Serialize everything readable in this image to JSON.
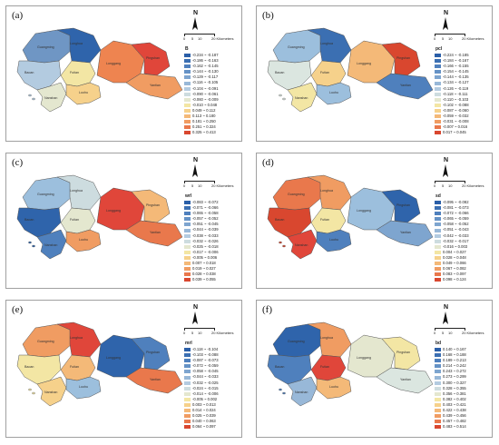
{
  "compass_letter": "N",
  "scale": {
    "ticks": [
      "0",
      "5",
      "10",
      "20 Kilometers"
    ]
  },
  "district_names": [
    "Guangming",
    "Longhua",
    "Baoan",
    "Nanshan",
    "Futian",
    "Luohu",
    "Longgang",
    "Pingshan",
    "Yantian"
  ],
  "colors": {
    "blue_dark": "#2b5fa8",
    "blue": "#4f86c2",
    "blue_light": "#9cbfdd",
    "pale": "#dbe6e0",
    "cream": "#f3e6a4",
    "orange_light": "#f4b978",
    "orange": "#ee8450",
    "red": "#e0463a",
    "red_dark": "#c8281e"
  },
  "panels": [
    {
      "label": "(a)",
      "legend_title": "B",
      "legend": [
        {
          "range": "-0.234 ~ -0.187",
          "color": "#2b5fa8"
        },
        {
          "range": "-0.186 ~ -0.163",
          "color": "#3b6fb2"
        },
        {
          "range": "-0.162 ~ -0.145",
          "color": "#4f80bd"
        },
        {
          "range": "-0.144 ~ -0.130",
          "color": "#6592c6"
        },
        {
          "range": "-0.129 ~ -0.117",
          "color": "#7ea5cf"
        },
        {
          "range": "-0.116 ~ -0.105",
          "color": "#98b8d8"
        },
        {
          "range": "-0.104 ~ -0.091",
          "color": "#b3cbe0"
        },
        {
          "range": "-0.090 ~ -0.061",
          "color": "#cddcdf"
        },
        {
          "range": "-0.060 ~ -0.009",
          "color": "#e4e7cf"
        },
        {
          "range": "-0.010 ~ 0.048",
          "color": "#f3e6a4"
        },
        {
          "range": "0.049 ~ 0.112",
          "color": "#f6d18b"
        },
        {
          "range": "0.113 ~ 0.180",
          "color": "#f4b978"
        },
        {
          "range": "0.181 ~ 0.250",
          "color": "#f09c62"
        },
        {
          "range": "0.251 ~ 0.324",
          "color": "#e9784c"
        },
        {
          "range": "0.325 ~ 0.413",
          "color": "#d9472f"
        }
      ],
      "regions": [
        "#6f96c4",
        "#2f64ab",
        "#b3cbe0",
        "#e4e7cf",
        "#f3e6a4",
        "#f6d18b",
        "#ee8450",
        "#e0463a",
        "#f09c62"
      ]
    },
    {
      "label": "(b)",
      "legend_title": "pcl",
      "legend": [
        {
          "range": "-0.224 ~ -0.185",
          "color": "#2b5fa8"
        },
        {
          "range": "-0.184 ~ -0.167",
          "color": "#3b6fb2"
        },
        {
          "range": "-0.166 ~ -0.155",
          "color": "#4f80bd"
        },
        {
          "range": "-0.154 ~ -0.145",
          "color": "#6592c6"
        },
        {
          "range": "-0.144 ~ -0.135",
          "color": "#7ea5cf"
        },
        {
          "range": "-0.134 ~ -0.127",
          "color": "#98b8d8"
        },
        {
          "range": "-0.126 ~ -0.119",
          "color": "#b3cbe0"
        },
        {
          "range": "-0.118 ~ -0.111",
          "color": "#cddcdf"
        },
        {
          "range": "-0.110 ~ -0.103",
          "color": "#e4e7cf"
        },
        {
          "range": "-0.102 ~ -0.088",
          "color": "#f3e6a4"
        },
        {
          "range": "-0.087 ~ -0.060",
          "color": "#f6d18b"
        },
        {
          "range": "-0.059 ~ -0.032",
          "color": "#f4b978"
        },
        {
          "range": "-0.031 ~ -0.008",
          "color": "#f09c62"
        },
        {
          "range": "-0.007 ~ 0.016",
          "color": "#e9784c"
        },
        {
          "range": "0.017 ~ 0.045",
          "color": "#d9472f"
        }
      ],
      "regions": [
        "#9cbfdd",
        "#3b6fb2",
        "#dbe6e0",
        "#f3e6a4",
        "#f6d18b",
        "#9cbfdd",
        "#f4b978",
        "#d9472f",
        "#4f80bd"
      ]
    },
    {
      "label": "(c)",
      "legend_title": "wrl",
      "legend": [
        {
          "range": "-0.083 ~ -0.072",
          "color": "#2b5fa8"
        },
        {
          "range": "-0.071 ~ -0.066",
          "color": "#3b6fb2"
        },
        {
          "range": "-0.065 ~ -0.058",
          "color": "#4f80bd"
        },
        {
          "range": "-0.057 ~ -0.052",
          "color": "#6592c6"
        },
        {
          "range": "-0.051 ~ -0.045",
          "color": "#7ea5cf"
        },
        {
          "range": "-0.044 ~ -0.039",
          "color": "#98b8d8"
        },
        {
          "range": "-0.038 ~ -0.033",
          "color": "#b3cbe0"
        },
        {
          "range": "-0.032 ~ -0.026",
          "color": "#cddcdf"
        },
        {
          "range": "-0.025 ~ -0.018",
          "color": "#e4e7cf"
        },
        {
          "range": "-0.017 ~ -0.006",
          "color": "#f3e6a4"
        },
        {
          "range": "-0.005 ~ 0.006",
          "color": "#f6d18b"
        },
        {
          "range": "0.007 ~ 0.018",
          "color": "#f4b978"
        },
        {
          "range": "0.019 ~ 0.027",
          "color": "#f09c62"
        },
        {
          "range": "0.028 ~ 0.038",
          "color": "#e9784c"
        },
        {
          "range": "0.039 ~ 0.055",
          "color": "#d9472f"
        }
      ],
      "regions": [
        "#9cbfdd",
        "#cddcdf",
        "#2f64ab",
        "#4f80bd",
        "#e4e7cf",
        "#f09c62",
        "#e0463a",
        "#f4b978",
        "#e9784c"
      ]
    },
    {
      "label": "(d)",
      "legend_title": "sd",
      "legend": [
        {
          "range": "-0.095 ~ -0.082",
          "color": "#2b5fa8"
        },
        {
          "range": "-0.081 ~ -0.073",
          "color": "#3b6fb2"
        },
        {
          "range": "-0.072 ~ -0.066",
          "color": "#4f80bd"
        },
        {
          "range": "-0.065 ~ -0.059",
          "color": "#6592c6"
        },
        {
          "range": "-0.058 ~ -0.052",
          "color": "#7ea5cf"
        },
        {
          "range": "-0.051 ~ -0.043",
          "color": "#98b8d8"
        },
        {
          "range": "-0.042 ~ -0.033",
          "color": "#b3cbe0"
        },
        {
          "range": "-0.032 ~ -0.017",
          "color": "#cddcdf"
        },
        {
          "range": "-0.016 ~ 0.003",
          "color": "#e4e7cf"
        },
        {
          "range": "0.004 ~ 0.027",
          "color": "#f3e6a4"
        },
        {
          "range": "0.028 ~ 0.048",
          "color": "#f6d18b"
        },
        {
          "range": "0.049 ~ 0.066",
          "color": "#f4b978"
        },
        {
          "range": "0.067 ~ 0.082",
          "color": "#f09c62"
        },
        {
          "range": "0.083 ~ 0.097",
          "color": "#e9784c"
        },
        {
          "range": "0.098 ~ 0.124",
          "color": "#d9472f"
        }
      ],
      "regions": [
        "#e9784c",
        "#f09c62",
        "#d9472f",
        "#e0463a",
        "#f3e6a4",
        "#4f80bd",
        "#9cbfdd",
        "#2f64ab",
        "#7ea5cf"
      ]
    },
    {
      "label": "(e)",
      "legend_title": "mrl",
      "legend": [
        {
          "range": "-0.118 ~ -0.104",
          "color": "#2b5fa8"
        },
        {
          "range": "-0.103 ~ -0.088",
          "color": "#3b6fb2"
        },
        {
          "range": "-0.087 ~ -0.073",
          "color": "#4f80bd"
        },
        {
          "range": "-0.072 ~ -0.059",
          "color": "#6592c6"
        },
        {
          "range": "-0.058 ~ -0.045",
          "color": "#7ea5cf"
        },
        {
          "range": "-0.044 ~ -0.033",
          "color": "#98b8d8"
        },
        {
          "range": "-0.032 ~ -0.025",
          "color": "#b3cbe0"
        },
        {
          "range": "-0.024 ~ -0.015",
          "color": "#cddcdf"
        },
        {
          "range": "-0.014 ~ -0.006",
          "color": "#e4e7cf"
        },
        {
          "range": "-0.005 ~ 0.002",
          "color": "#f3e6a4"
        },
        {
          "range": "0.003 ~ 0.013",
          "color": "#f6d18b"
        },
        {
          "range": "0.014 ~ 0.024",
          "color": "#f4b978"
        },
        {
          "range": "0.025 ~ 0.039",
          "color": "#f09c62"
        },
        {
          "range": "0.040 ~ 0.063",
          "color": "#e9784c"
        },
        {
          "range": "0.064 ~ 0.097",
          "color": "#d9472f"
        }
      ],
      "regions": [
        "#f09c62",
        "#e0463a",
        "#f3e6a4",
        "#f6d18b",
        "#f4b978",
        "#9cbfdd",
        "#2f64ab",
        "#4f80bd",
        "#e9784c"
      ]
    },
    {
      "label": "(f)",
      "legend_title": "bd",
      "legend": [
        {
          "range": "0.140 ~ 0.167",
          "color": "#2b5fa8"
        },
        {
          "range": "0.168 ~ 0.188",
          "color": "#3b6fb2"
        },
        {
          "range": "0.189 ~ 0.213",
          "color": "#4f80bd"
        },
        {
          "range": "0.214 ~ 0.242",
          "color": "#6592c6"
        },
        {
          "range": "0.243 ~ 0.272",
          "color": "#7ea5cf"
        },
        {
          "range": "0.273 ~ 0.299",
          "color": "#98b8d8"
        },
        {
          "range": "0.300 ~ 0.327",
          "color": "#b3cbe0"
        },
        {
          "range": "0.328 ~ 0.355",
          "color": "#cddcdf"
        },
        {
          "range": "0.356 ~ 0.381",
          "color": "#e4e7cf"
        },
        {
          "range": "0.382 ~ 0.402",
          "color": "#f3e6a4"
        },
        {
          "range": "0.403 ~ 0.421",
          "color": "#f6d18b"
        },
        {
          "range": "0.422 ~ 0.438",
          "color": "#f4b978"
        },
        {
          "range": "0.439 ~ 0.456",
          "color": "#f09c62"
        },
        {
          "range": "0.457 ~ 0.482",
          "color": "#e9784c"
        },
        {
          "range": "0.483 ~ 0.514",
          "color": "#d9472f"
        }
      ],
      "regions": [
        "#2f64ab",
        "#f09c62",
        "#4f80bd",
        "#98b8d8",
        "#e0463a",
        "#f4b978",
        "#e4e7cf",
        "#f3e6a4",
        "#dbe6e0"
      ]
    }
  ]
}
